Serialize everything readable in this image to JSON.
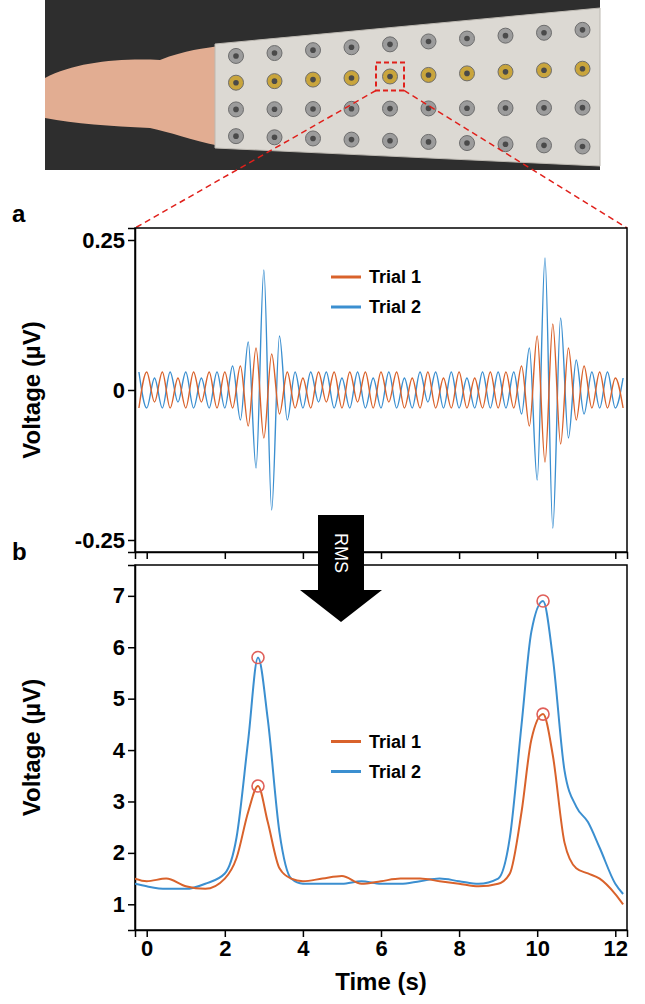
{
  "chart_data": [
    {
      "type": "line",
      "panel": "a",
      "ylabel": "Voltage (µV)",
      "x": [
        -0.2,
        0,
        0.2,
        0.4,
        0.6,
        0.8,
        1,
        1.2,
        1.4,
        1.6,
        1.8,
        2,
        2.2,
        2.4,
        2.6,
        2.8,
        3,
        3.2,
        3.4,
        3.6,
        3.8,
        4,
        4.2,
        4.4,
        4.6,
        4.8,
        5,
        5.2,
        5.4,
        5.6,
        5.8,
        6,
        6.2,
        6.4,
        6.6,
        6.8,
        7,
        7.2,
        7.4,
        7.6,
        7.8,
        8,
        8.2,
        8.4,
        8.6,
        8.8,
        9,
        9.2,
        9.4,
        9.6,
        9.8,
        10,
        10.2,
        10.4,
        10.6,
        10.8,
        11,
        11.2,
        11.4,
        11.6,
        11.8,
        12,
        12.2
      ],
      "xlim": [
        -0.3,
        12.3
      ],
      "xticks": [
        0,
        2,
        4,
        6,
        8,
        10,
        12
      ],
      "ylim": [
        -0.27,
        0.27
      ],
      "yticks": [
        -0.25,
        0,
        0.25
      ],
      "tick_labels": "y",
      "legend": "top",
      "series": [
        {
          "name": "Trial 1",
          "color": "#d9622b",
          "values": [
            -0.03,
            0.03,
            -0.02,
            0.03,
            -0.03,
            0.02,
            -0.03,
            0.03,
            -0.02,
            0.03,
            -0.03,
            0.03,
            -0.03,
            0.04,
            -0.06,
            0.07,
            -0.08,
            0.06,
            -0.04,
            0.03,
            -0.03,
            0.02,
            -0.03,
            0.03,
            -0.02,
            0.03,
            -0.03,
            0.03,
            -0.02,
            0.03,
            -0.03,
            0.03,
            -0.02,
            0.03,
            -0.03,
            0.02,
            -0.03,
            0.03,
            -0.03,
            0.02,
            -0.03,
            0.03,
            -0.03,
            0.02,
            -0.03,
            0.03,
            -0.03,
            0.03,
            -0.03,
            0.04,
            -0.06,
            0.09,
            -0.12,
            0.11,
            -0.09,
            0.07,
            -0.05,
            0.04,
            -0.03,
            0.03,
            -0.03,
            0.02,
            -0.03
          ]
        },
        {
          "name": "Trial 2",
          "color": "#3b8fd0",
          "values": [
            0.03,
            -0.03,
            0.02,
            -0.03,
            0.03,
            -0.02,
            0.03,
            -0.03,
            0.02,
            -0.03,
            0.03,
            -0.03,
            0.04,
            -0.05,
            0.08,
            -0.13,
            0.2,
            -0.2,
            0.09,
            -0.05,
            0.03,
            -0.03,
            0.03,
            -0.02,
            0.03,
            -0.03,
            0.02,
            -0.03,
            0.03,
            -0.03,
            0.02,
            -0.03,
            0.03,
            -0.03,
            0.02,
            -0.03,
            0.03,
            -0.02,
            0.03,
            -0.03,
            0.03,
            -0.03,
            0.02,
            -0.03,
            0.03,
            -0.03,
            0.03,
            -0.03,
            0.03,
            -0.04,
            0.07,
            -0.15,
            0.22,
            -0.23,
            0.12,
            -0.08,
            0.05,
            -0.04,
            0.03,
            -0.03,
            0.03,
            -0.03,
            0.02
          ]
        }
      ]
    },
    {
      "type": "line",
      "panel": "b",
      "xlabel": "Time (s)",
      "ylabel": "Voltage (µV)",
      "x": [
        -0.3,
        0,
        0.5,
        1,
        1.5,
        2,
        2.3,
        2.6,
        2.85,
        3.1,
        3.4,
        3.7,
        4,
        4.5,
        5,
        5.5,
        6,
        6.5,
        7,
        7.5,
        8,
        8.5,
        9,
        9.3,
        9.6,
        9.85,
        10.15,
        10.4,
        10.7,
        11,
        11.3,
        11.6,
        12,
        12.2
      ],
      "xlim": [
        -0.3,
        12.3
      ],
      "xticks": [
        0,
        2,
        4,
        6,
        8,
        10,
        12
      ],
      "ylim": [
        0.5,
        7.6
      ],
      "yticks": [
        1,
        2,
        3,
        4,
        5,
        6,
        7
      ],
      "legend": "center",
      "annotations": [
        "RMS"
      ],
      "series": [
        {
          "name": "Trial 1",
          "color": "#d9622b",
          "values": [
            1.5,
            1.45,
            1.5,
            1.35,
            1.3,
            1.5,
            1.9,
            2.8,
            3.3,
            2.6,
            1.7,
            1.5,
            1.45,
            1.5,
            1.55,
            1.4,
            1.45,
            1.5,
            1.5,
            1.45,
            1.4,
            1.35,
            1.4,
            1.6,
            2.8,
            4.2,
            4.7,
            3.9,
            2.2,
            1.7,
            1.6,
            1.5,
            1.2,
            1.0
          ]
        },
        {
          "name": "Trial 2",
          "color": "#3b8fd0",
          "values": [
            1.4,
            1.35,
            1.3,
            1.3,
            1.4,
            1.6,
            2.3,
            4.2,
            5.8,
            4.6,
            2.4,
            1.5,
            1.4,
            1.4,
            1.4,
            1.45,
            1.4,
            1.4,
            1.45,
            1.5,
            1.45,
            1.4,
            1.5,
            2.3,
            4.5,
            6.3,
            6.9,
            5.8,
            3.6,
            2.9,
            2.6,
            2.1,
            1.4,
            1.2
          ]
        },
        {
          "type": "scatter",
          "marker": "circle",
          "color": "#e0605a",
          "x": [
            2.85,
            10.15,
            2.85,
            10.15
          ],
          "values": [
            3.3,
            4.7,
            5.8,
            6.9
          ]
        }
      ]
    }
  ]
}
